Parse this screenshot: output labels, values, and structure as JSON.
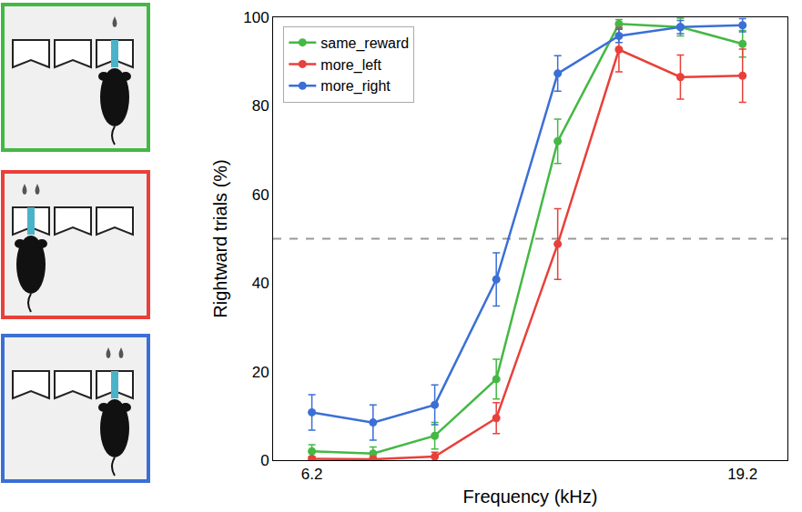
{
  "chart_data": {
    "type": "line",
    "x_label": "Frequency (kHz)",
    "y_label": "Rightward trials (%)",
    "x": [
      6.2,
      7.28,
      8.56,
      10.06,
      11.82,
      13.88,
      16.31,
      19.2
    ],
    "xlim": [
      5.6,
      21.6
    ],
    "xticks": [
      6.2,
      19.2
    ],
    "log": "x",
    "ylim": [
      0,
      100
    ],
    "yticks": [
      0,
      20,
      40,
      60,
      80,
      100
    ],
    "grid": false,
    "legend": "upper left",
    "hline": 50,
    "series": [
      {
        "name": "same_reward",
        "color": "#44b844",
        "marker": "circle",
        "line_style": "solid",
        "values": [
          2.0,
          1.5,
          5.5,
          18.3,
          72.0,
          98.5,
          97.8,
          94.0
        ],
        "errors": [
          1.5,
          1.5,
          3.0,
          4.5,
          5.0,
          1.0,
          2.0,
          3.0
        ]
      },
      {
        "name": "more_left",
        "color": "#e8403a",
        "marker": "circle",
        "line_style": "solid",
        "values": [
          0.3,
          0.2,
          0.8,
          9.5,
          48.8,
          92.7,
          86.5,
          86.8
        ],
        "errors": [
          0.5,
          0.5,
          1.0,
          3.5,
          8.0,
          5.0,
          5.0,
          6.0
        ]
      },
      {
        "name": "more_right",
        "color": "#3b6fd6",
        "marker": "circle",
        "line_style": "solid",
        "values": [
          10.8,
          8.5,
          12.5,
          40.8,
          87.3,
          95.8,
          97.8,
          98.2
        ],
        "errors": [
          4.0,
          4.0,
          4.5,
          6.0,
          4.0,
          1.5,
          1.5,
          1.5
        ]
      }
    ]
  }
}
